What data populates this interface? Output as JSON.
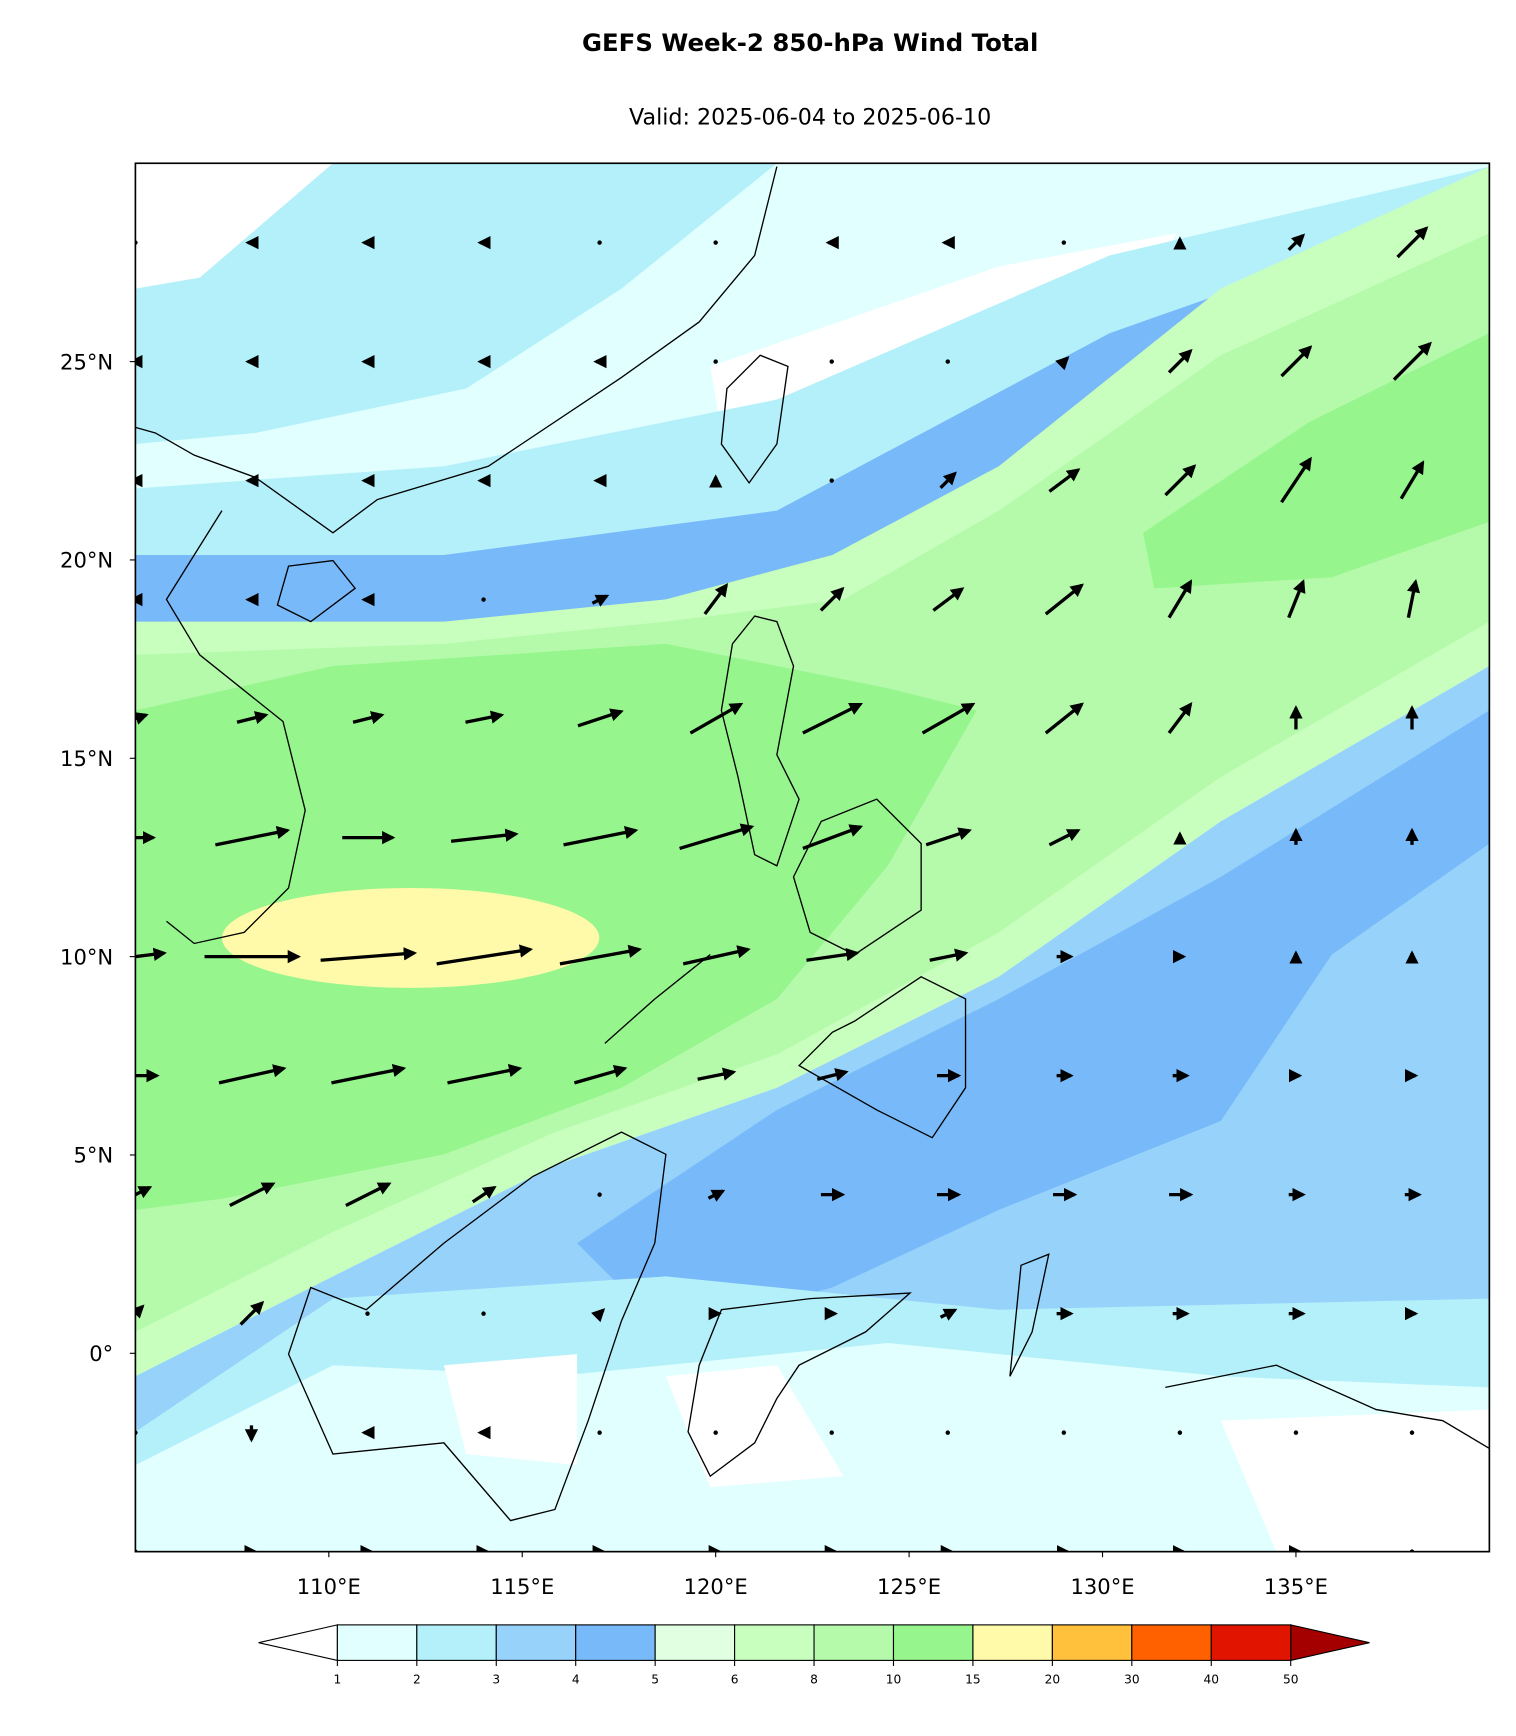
{
  "chart_data": {
    "type": "contour-map",
    "title": "GEFS Week-2 850-hPa Wind Total",
    "subtitle": "Valid: 2025-06-04 to 2025-06-10",
    "xlim": [
      105,
      140
    ],
    "ylim": [
      -5,
      30
    ],
    "xticks": [
      {
        "value": 110,
        "label": "110°E"
      },
      {
        "value": 115,
        "label": "115°E"
      },
      {
        "value": 120,
        "label": "120°E"
      },
      {
        "value": 125,
        "label": "125°E"
      },
      {
        "value": 130,
        "label": "130°E"
      },
      {
        "value": 135,
        "label": "135°E"
      }
    ],
    "yticks": [
      {
        "value": 0,
        "label": "0°"
      },
      {
        "value": 5,
        "label": "5°N"
      },
      {
        "value": 10,
        "label": "10°N"
      },
      {
        "value": 15,
        "label": "15°N"
      },
      {
        "value": 20,
        "label": "20°N"
      },
      {
        "value": 25,
        "label": "25°N"
      }
    ],
    "colorbar": {
      "levels": [
        1,
        2,
        3,
        4,
        5,
        6,
        8,
        10,
        15,
        20,
        30,
        40,
        50
      ],
      "colors": [
        "#e1ffff",
        "#b4f0fa",
        "#96d2fa",
        "#78b9fa",
        "#e1ffe1",
        "#c8ffbe",
        "#b4faaa",
        "#96f58c",
        "#fffaaa",
        "#ffc03c",
        "#ff6000",
        "#e11400"
      ],
      "under_color": "#ffffff",
      "over_color": "#a50000"
    },
    "wind": {
      "lon": [
        105,
        108,
        111,
        114,
        117,
        120,
        123,
        126,
        129,
        132,
        135,
        138
      ],
      "lat": [
        28,
        25,
        22,
        19,
        16,
        13,
        10,
        7,
        4,
        1,
        -2,
        -5
      ],
      "u": [
        [
          0,
          -1,
          -1,
          -1,
          0,
          0,
          -1,
          -1,
          0,
          0,
          2,
          4
        ],
        [
          -1,
          -1,
          -1,
          -1,
          -1,
          0,
          0,
          0,
          1,
          3,
          4,
          5
        ],
        [
          -1,
          -1,
          -1,
          -1,
          -1,
          0,
          0,
          2,
          4,
          4,
          4,
          3
        ],
        [
          -1,
          -1,
          -1,
          0,
          2,
          3,
          3,
          4,
          5,
          3,
          2,
          1
        ],
        [
          3,
          4,
          4,
          5,
          6,
          7,
          8,
          7,
          5,
          3,
          0,
          0
        ],
        [
          5,
          10,
          7,
          9,
          10,
          10,
          8,
          6,
          4,
          0,
          0,
          0
        ],
        [
          8,
          13,
          13,
          13,
          11,
          9,
          7,
          5,
          2,
          1,
          0,
          0
        ],
        [
          6,
          9,
          10,
          10,
          7,
          5,
          4,
          3,
          2,
          2,
          1,
          1
        ],
        [
          4,
          6,
          6,
          3,
          0,
          2,
          3,
          3,
          3,
          3,
          2,
          2
        ],
        [
          2,
          3,
          0,
          0,
          1,
          1,
          1,
          2,
          2,
          2,
          2,
          1
        ],
        [
          0,
          0,
          -1,
          -1,
          0,
          0,
          0,
          0,
          0,
          0,
          0,
          0
        ],
        [
          0,
          1,
          1,
          1,
          1,
          1,
          1,
          1,
          1,
          1,
          1,
          0
        ]
      ],
      "v": [
        [
          0,
          0,
          0,
          0,
          0,
          0,
          0,
          0,
          0,
          1,
          2,
          4
        ],
        [
          0,
          0,
          0,
          0,
          0,
          0,
          0,
          0,
          1,
          3,
          4,
          5
        ],
        [
          0,
          0,
          0,
          0,
          0,
          1,
          0,
          2,
          3,
          4,
          6,
          5
        ],
        [
          0,
          0,
          0,
          0,
          1,
          4,
          3,
          3,
          4,
          5,
          5,
          5
        ],
        [
          1,
          1,
          1,
          1,
          2,
          4,
          4,
          4,
          4,
          4,
          3,
          3
        ],
        [
          0,
          2,
          0,
          1,
          2,
          3,
          3,
          2,
          2,
          1,
          2,
          2
        ],
        [
          1,
          0,
          1,
          2,
          2,
          2,
          1,
          1,
          0,
          0,
          1,
          1
        ],
        [
          0,
          2,
          2,
          2,
          2,
          1,
          1,
          0,
          0,
          0,
          0,
          0
        ],
        [
          2,
          3,
          3,
          2,
          0,
          1,
          0,
          0,
          0,
          0,
          0,
          0
        ],
        [
          2,
          3,
          0,
          0,
          1,
          0,
          0,
          1,
          0,
          0,
          0,
          0
        ],
        [
          0,
          -2,
          0,
          0,
          0,
          0,
          0,
          0,
          0,
          0,
          0,
          0
        ],
        [
          0,
          0,
          0,
          0,
          0,
          0,
          0,
          0,
          0,
          0,
          0,
          0
        ]
      ]
    }
  }
}
